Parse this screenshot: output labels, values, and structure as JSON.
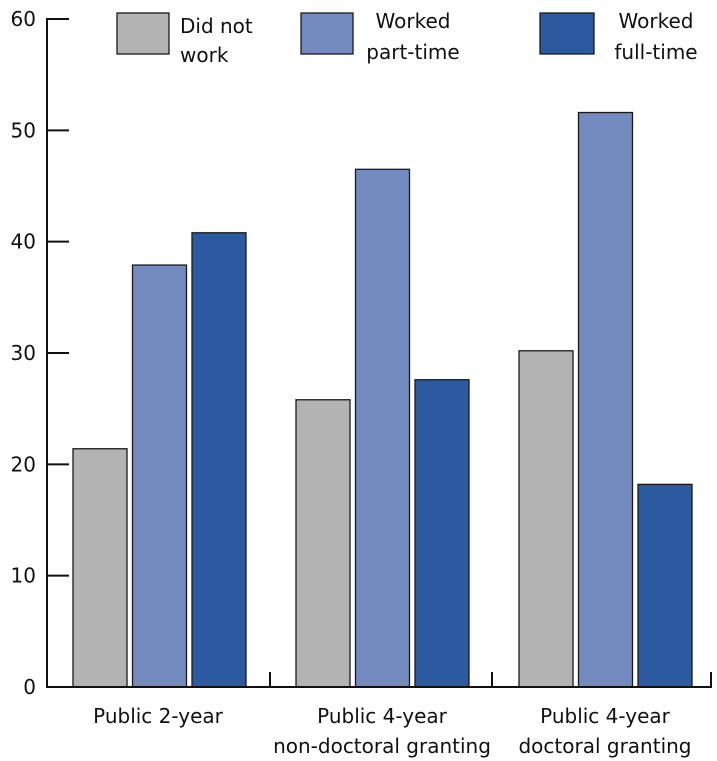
{
  "chart_data": {
    "type": "bar",
    "title": "",
    "xlabel": "",
    "ylabel": "",
    "ylim": [
      0,
      60
    ],
    "yticks": [
      0,
      10,
      20,
      30,
      40,
      50,
      60
    ],
    "grid": false,
    "legend_position": "top",
    "categories": [
      [
        "Public 2-year"
      ],
      [
        "Public 4-year",
        "non-doctoral granting"
      ],
      [
        "Public 4-year",
        "doctoral granting"
      ]
    ],
    "series": [
      {
        "name": [
          "Did not",
          "work"
        ],
        "color": "#b3b3b3",
        "values": [
          21.4,
          25.8,
          30.2
        ]
      },
      {
        "name": [
          "Worked",
          "part-time"
        ],
        "color": "#738abf",
        "values": [
          37.9,
          46.5,
          51.6
        ]
      },
      {
        "name": [
          "Worked",
          "full-time"
        ],
        "color": "#2b5aa1",
        "values": [
          40.8,
          27.6,
          18.2
        ]
      }
    ]
  }
}
